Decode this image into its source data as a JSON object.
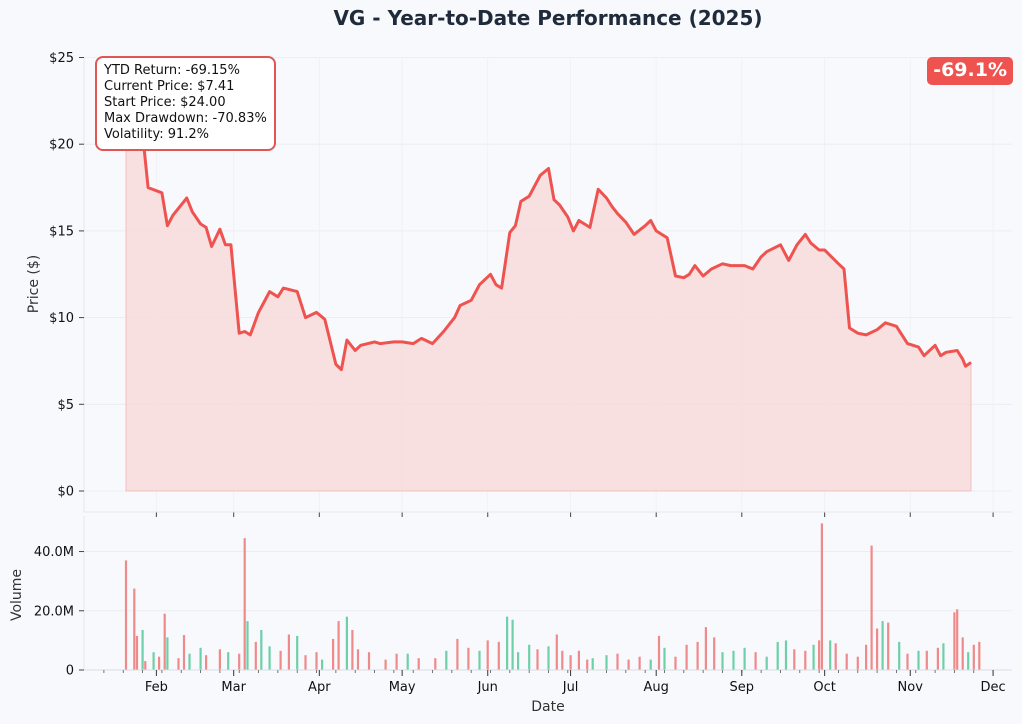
{
  "title": "VG - Year-to-Date Performance (2025)",
  "stats_box": {
    "lines": [
      "YTD Return: -69.15%",
      "Current Price: $7.41",
      "Start Price: $24.00",
      "Max Drawdown: -70.83%",
      "Volatility: 91.2%"
    ]
  },
  "badge": "-69.1%",
  "colors": {
    "line": "#ef5350",
    "fill": "#f7dcdd",
    "up": "#6fcfa9",
    "down": "#ef8a8a",
    "background": "#f7f9fc"
  },
  "chart_data": [
    {
      "type": "area",
      "ylabel": "Price ($)",
      "ylim": [
        0,
        25
      ],
      "ytick_labels": [
        "$0",
        "$5",
        "$10",
        "$15",
        "$20",
        "$25"
      ],
      "grid": true,
      "series": [
        {
          "values": [
            [
              "2025-01-21",
              24.0
            ],
            [
              "2025-01-22",
              23.2
            ],
            [
              "2025-01-24",
              22.0
            ],
            [
              "2025-01-27",
              20.6
            ],
            [
              "2025-01-29",
              17.5
            ],
            [
              "2025-02-03",
              17.2
            ],
            [
              "2025-02-05",
              15.3
            ],
            [
              "2025-02-07",
              15.9
            ],
            [
              "2025-02-12",
              16.9
            ],
            [
              "2025-02-14",
              16.1
            ],
            [
              "2025-02-17",
              15.4
            ],
            [
              "2025-02-19",
              15.2
            ],
            [
              "2025-02-21",
              14.1
            ],
            [
              "2025-02-24",
              15.1
            ],
            [
              "2025-02-26",
              14.2
            ],
            [
              "2025-02-28",
              14.2
            ],
            [
              "2025-03-03",
              9.1
            ],
            [
              "2025-03-05",
              9.2
            ],
            [
              "2025-03-07",
              9.0
            ],
            [
              "2025-03-10",
              10.3
            ],
            [
              "2025-03-12",
              10.9
            ],
            [
              "2025-03-14",
              11.5
            ],
            [
              "2025-03-17",
              11.2
            ],
            [
              "2025-03-19",
              11.7
            ],
            [
              "2025-03-24",
              11.5
            ],
            [
              "2025-03-27",
              10.0
            ],
            [
              "2025-03-31",
              10.3
            ],
            [
              "2025-04-03",
              9.9
            ],
            [
              "2025-04-07",
              7.3
            ],
            [
              "2025-04-09",
              7.0
            ],
            [
              "2025-04-11",
              8.7
            ],
            [
              "2025-04-14",
              8.1
            ],
            [
              "2025-04-16",
              8.4
            ],
            [
              "2025-04-21",
              8.6
            ],
            [
              "2025-04-23",
              8.5
            ],
            [
              "2025-04-28",
              8.6
            ],
            [
              "2025-05-01",
              8.6
            ],
            [
              "2025-05-05",
              8.5
            ],
            [
              "2025-05-08",
              8.8
            ],
            [
              "2025-05-12",
              8.5
            ],
            [
              "2025-05-16",
              9.2
            ],
            [
              "2025-05-20",
              10.0
            ],
            [
              "2025-05-22",
              10.7
            ],
            [
              "2025-05-26",
              11.0
            ],
            [
              "2025-05-29",
              11.9
            ],
            [
              "2025-06-02",
              12.5
            ],
            [
              "2025-06-04",
              11.9
            ],
            [
              "2025-06-06",
              11.7
            ],
            [
              "2025-06-09",
              14.9
            ],
            [
              "2025-06-11",
              15.3
            ],
            [
              "2025-06-13",
              16.7
            ],
            [
              "2025-06-16",
              17.0
            ],
            [
              "2025-06-18",
              17.6
            ],
            [
              "2025-06-20",
              18.2
            ],
            [
              "2025-06-23",
              18.6
            ],
            [
              "2025-06-25",
              16.8
            ],
            [
              "2025-06-27",
              16.5
            ],
            [
              "2025-06-30",
              15.8
            ],
            [
              "2025-07-02",
              15.0
            ],
            [
              "2025-07-04",
              15.6
            ],
            [
              "2025-07-08",
              15.2
            ],
            [
              "2025-07-11",
              17.4
            ],
            [
              "2025-07-14",
              16.9
            ],
            [
              "2025-07-16",
              16.4
            ],
            [
              "2025-07-18",
              16.0
            ],
            [
              "2025-07-21",
              15.5
            ],
            [
              "2025-07-24",
              14.8
            ],
            [
              "2025-07-28",
              15.3
            ],
            [
              "2025-07-30",
              15.6
            ],
            [
              "2025-08-01",
              15.0
            ],
            [
              "2025-08-05",
              14.6
            ],
            [
              "2025-08-08",
              12.4
            ],
            [
              "2025-08-11",
              12.3
            ],
            [
              "2025-08-13",
              12.5
            ],
            [
              "2025-08-15",
              13.0
            ],
            [
              "2025-08-18",
              12.4
            ],
            [
              "2025-08-21",
              12.8
            ],
            [
              "2025-08-25",
              13.1
            ],
            [
              "2025-08-28",
              13.0
            ],
            [
              "2025-09-02",
              13.0
            ],
            [
              "2025-09-05",
              12.8
            ],
            [
              "2025-09-08",
              13.5
            ],
            [
              "2025-09-10",
              13.8
            ],
            [
              "2025-09-15",
              14.2
            ],
            [
              "2025-09-18",
              13.3
            ],
            [
              "2025-09-21",
              14.2
            ],
            [
              "2025-09-24",
              14.8
            ],
            [
              "2025-09-26",
              14.3
            ],
            [
              "2025-09-29",
              13.9
            ],
            [
              "2025-10-01",
              13.9
            ],
            [
              "2025-10-06",
              13.1
            ],
            [
              "2025-10-08",
              12.8
            ],
            [
              "2025-10-10",
              9.4
            ],
            [
              "2025-10-13",
              9.1
            ],
            [
              "2025-10-16",
              9.0
            ],
            [
              "2025-10-20",
              9.3
            ],
            [
              "2025-10-23",
              9.7
            ],
            [
              "2025-10-27",
              9.5
            ],
            [
              "2025-10-31",
              8.5
            ],
            [
              "2025-11-04",
              8.3
            ],
            [
              "2025-11-06",
              7.8
            ],
            [
              "2025-11-10",
              8.4
            ],
            [
              "2025-11-12",
              7.8
            ],
            [
              "2025-11-14",
              8.0
            ],
            [
              "2025-11-18",
              8.1
            ],
            [
              "2025-11-20",
              7.6
            ],
            [
              "2025-11-21",
              7.2
            ],
            [
              "2025-11-23",
              7.41
            ]
          ]
        }
      ]
    },
    {
      "type": "bar",
      "xlabel": "Date",
      "ylabel": "Volume",
      "ylim": [
        0,
        52
      ],
      "ytick_labels": [
        "0",
        "20.0M",
        "40.0M"
      ],
      "xtick_labels": [
        "Feb",
        "Mar",
        "Apr",
        "May",
        "Jun",
        "Jul",
        "Aug",
        "Sep",
        "Oct",
        "Nov",
        "Dec"
      ],
      "unit": "M",
      "series": [
        {
          "values": [
            [
              "2025-01-21",
              37,
              "down"
            ],
            [
              "2025-01-24",
              27.5,
              "down"
            ],
            [
              "2025-01-25",
              11.5,
              "down"
            ],
            [
              "2025-01-27",
              13.5,
              "up"
            ],
            [
              "2025-01-28",
              3,
              "down"
            ],
            [
              "2025-01-31",
              6,
              "up"
            ],
            [
              "2025-02-02",
              4.5,
              "down"
            ],
            [
              "2025-02-04",
              19,
              "down"
            ],
            [
              "2025-02-05",
              11,
              "up"
            ],
            [
              "2025-02-09",
              4,
              "down"
            ],
            [
              "2025-02-11",
              11.8,
              "down"
            ],
            [
              "2025-02-13",
              5.5,
              "up"
            ],
            [
              "2025-02-17",
              7.5,
              "up"
            ],
            [
              "2025-02-19",
              5,
              "down"
            ],
            [
              "2025-02-24",
              7,
              "down"
            ],
            [
              "2025-02-27",
              6,
              "up"
            ],
            [
              "2025-03-03",
              5.5,
              "down"
            ],
            [
              "2025-03-05",
              44.5,
              "down"
            ],
            [
              "2025-03-06",
              16.5,
              "up"
            ],
            [
              "2025-03-09",
              9.5,
              "down"
            ],
            [
              "2025-03-11",
              13.5,
              "up"
            ],
            [
              "2025-03-14",
              8,
              "up"
            ],
            [
              "2025-03-18",
              6.5,
              "down"
            ],
            [
              "2025-03-21",
              12,
              "down"
            ],
            [
              "2025-03-24",
              11.5,
              "up"
            ],
            [
              "2025-03-27",
              5,
              "down"
            ],
            [
              "2025-03-31",
              6,
              "down"
            ],
            [
              "2025-04-02",
              3.5,
              "up"
            ],
            [
              "2025-04-06",
              10.5,
              "down"
            ],
            [
              "2025-04-08",
              16.5,
              "down"
            ],
            [
              "2025-04-11",
              18,
              "up"
            ],
            [
              "2025-04-13",
              13.5,
              "down"
            ],
            [
              "2025-04-15",
              7,
              "down"
            ],
            [
              "2025-04-19",
              6,
              "down"
            ],
            [
              "2025-04-25",
              3.5,
              "down"
            ],
            [
              "2025-04-29",
              5.5,
              "down"
            ],
            [
              "2025-05-03",
              5.5,
              "up"
            ],
            [
              "2025-05-07",
              4,
              "down"
            ],
            [
              "2025-05-13",
              4,
              "down"
            ],
            [
              "2025-05-17",
              6.5,
              "up"
            ],
            [
              "2025-05-21",
              10.5,
              "down"
            ],
            [
              "2025-05-25",
              7.5,
              "down"
            ],
            [
              "2025-05-29",
              6.5,
              "up"
            ],
            [
              "2025-06-01",
              10,
              "down"
            ],
            [
              "2025-06-05",
              9.5,
              "down"
            ],
            [
              "2025-06-08",
              18,
              "up"
            ],
            [
              "2025-06-10",
              17,
              "up"
            ],
            [
              "2025-06-12",
              6,
              "up"
            ],
            [
              "2025-06-16",
              8.5,
              "up"
            ],
            [
              "2025-06-19",
              7,
              "down"
            ],
            [
              "2025-06-23",
              8,
              "up"
            ],
            [
              "2025-06-26",
              12,
              "down"
            ],
            [
              "2025-06-28",
              6.5,
              "down"
            ],
            [
              "2025-07-01",
              5,
              "down"
            ],
            [
              "2025-07-04",
              6.5,
              "down"
            ],
            [
              "2025-07-07",
              3.5,
              "down"
            ],
            [
              "2025-07-09",
              4,
              "up"
            ],
            [
              "2025-07-14",
              5,
              "up"
            ],
            [
              "2025-07-18",
              5.5,
              "down"
            ],
            [
              "2025-07-22",
              3.5,
              "down"
            ],
            [
              "2025-07-26",
              4.5,
              "down"
            ],
            [
              "2025-07-30",
              3.5,
              "up"
            ],
            [
              "2025-08-02",
              11.5,
              "down"
            ],
            [
              "2025-08-04",
              7.5,
              "up"
            ],
            [
              "2025-08-08",
              4.5,
              "down"
            ],
            [
              "2025-08-12",
              8.5,
              "down"
            ],
            [
              "2025-08-16",
              9.5,
              "down"
            ],
            [
              "2025-08-19",
              14.5,
              "down"
            ],
            [
              "2025-08-22",
              11,
              "down"
            ],
            [
              "2025-08-25",
              6,
              "up"
            ],
            [
              "2025-08-29",
              6.5,
              "up"
            ],
            [
              "2025-09-02",
              7.5,
              "up"
            ],
            [
              "2025-09-06",
              6,
              "down"
            ],
            [
              "2025-09-10",
              4.5,
              "up"
            ],
            [
              "2025-09-14",
              9.5,
              "up"
            ],
            [
              "2025-09-17",
              10,
              "up"
            ],
            [
              "2025-09-20",
              7,
              "down"
            ],
            [
              "2025-09-24",
              6.5,
              "down"
            ],
            [
              "2025-09-27",
              8.5,
              "up"
            ],
            [
              "2025-09-29",
              10,
              "down"
            ],
            [
              "2025-09-30",
              49.5,
              "down"
            ],
            [
              "2025-10-03",
              10,
              "up"
            ],
            [
              "2025-10-05",
              9,
              "down"
            ],
            [
              "2025-10-09",
              5.5,
              "down"
            ],
            [
              "2025-10-13",
              4.5,
              "down"
            ],
            [
              "2025-10-16",
              8.5,
              "down"
            ],
            [
              "2025-10-18",
              42,
              "down"
            ],
            [
              "2025-10-20",
              14,
              "down"
            ],
            [
              "2025-10-22",
              16.5,
              "up"
            ],
            [
              "2025-10-24",
              16,
              "down"
            ],
            [
              "2025-10-28",
              9.5,
              "up"
            ],
            [
              "2025-10-31",
              5.5,
              "down"
            ],
            [
              "2025-11-04",
              6.5,
              "up"
            ],
            [
              "2025-11-07",
              6.5,
              "down"
            ],
            [
              "2025-11-11",
              7.5,
              "down"
            ],
            [
              "2025-11-13",
              9,
              "up"
            ],
            [
              "2025-11-17",
              19.5,
              "down"
            ],
            [
              "2025-11-18",
              20.5,
              "down"
            ],
            [
              "2025-11-20",
              11,
              "down"
            ],
            [
              "2025-11-22",
              6,
              "up"
            ],
            [
              "2025-11-24",
              8.5,
              "down"
            ],
            [
              "2025-11-26",
              9.5,
              "down"
            ]
          ]
        }
      ]
    }
  ]
}
